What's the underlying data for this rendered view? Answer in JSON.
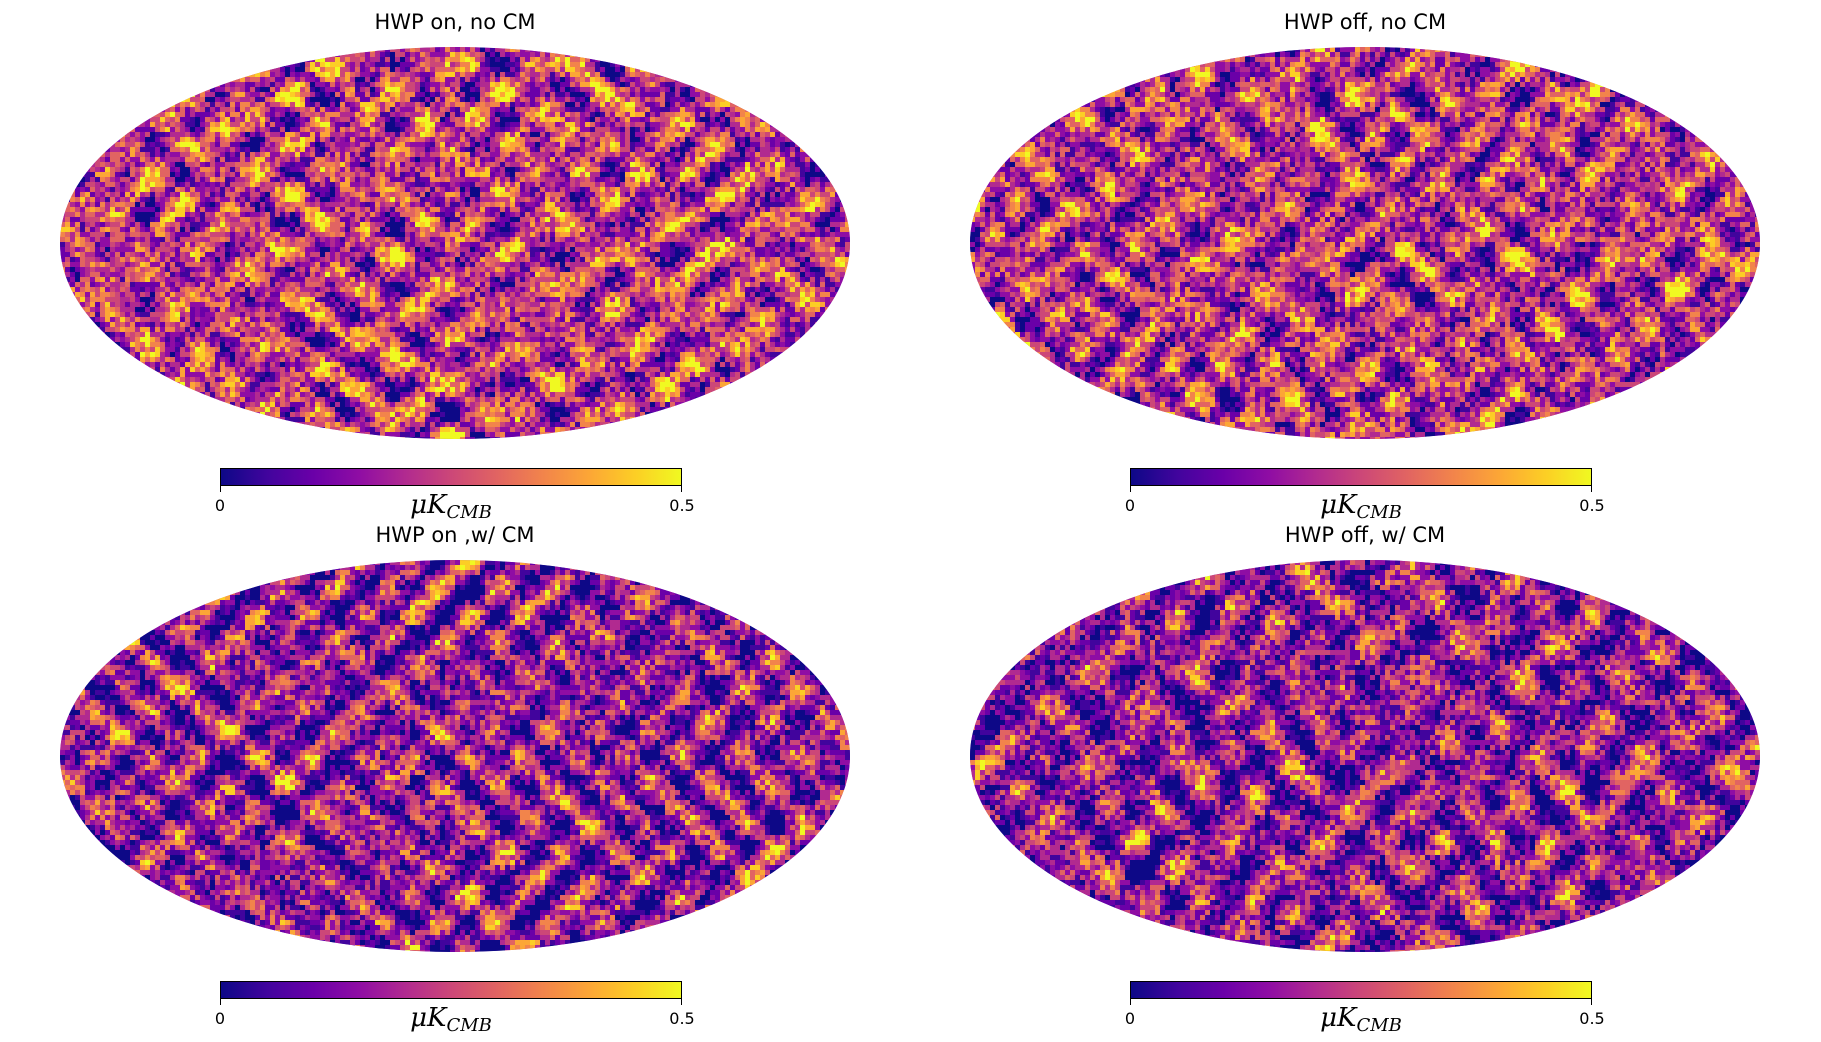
{
  "colormap": {
    "name": "plasma",
    "stops": [
      "#0d0887",
      "#41049d",
      "#6a00a8",
      "#8f0da4",
      "#b12a90",
      "#cc4778",
      "#e16462",
      "#f2844b",
      "#fca636",
      "#fcce25",
      "#f0f921"
    ]
  },
  "chart_data": [
    {
      "type": "heatmap",
      "projection": "mollweide",
      "title": "HWP on, no CM",
      "colorbar": {
        "min": 0,
        "max": 0.5,
        "ticks": [
          "0",
          "0.5"
        ],
        "label_main": "μK",
        "label_sub": "CMB"
      },
      "intensity_bias": 0.0,
      "seed": 11
    },
    {
      "type": "heatmap",
      "projection": "mollweide",
      "title": "HWP off, no CM",
      "colorbar": {
        "min": 0,
        "max": 0.5,
        "ticks": [
          "0",
          "0.5"
        ],
        "label_main": "μK",
        "label_sub": "CMB"
      },
      "intensity_bias": -0.02,
      "seed": 23
    },
    {
      "type": "heatmap",
      "projection": "mollweide",
      "title": "HWP on ,w/ CM",
      "colorbar": {
        "min": 0,
        "max": 0.5,
        "ticks": [
          "0",
          "0.5"
        ],
        "label_main": "μK",
        "label_sub": "CMB"
      },
      "intensity_bias": -0.12,
      "seed": 37
    },
    {
      "type": "heatmap",
      "projection": "mollweide",
      "title": "HWP off, w/ CM",
      "colorbar": {
        "min": 0,
        "max": 0.5,
        "ticks": [
          "0",
          "0.5"
        ],
        "label_main": "μK",
        "label_sub": "CMB"
      },
      "intensity_bias": -0.12,
      "seed": 51
    }
  ]
}
